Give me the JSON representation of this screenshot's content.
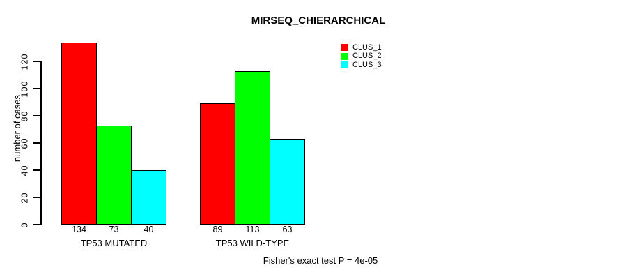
{
  "chart_data": {
    "type": "bar",
    "title": "MIRSEQ_CHIERARCHICAL",
    "xlabel": "",
    "ylabel": "number of cases",
    "categories": [
      "TP53 MUTATED",
      "TP53 WILD-TYPE"
    ],
    "series": [
      {
        "name": "CLUS_1",
        "color": "#FF0000",
        "values": [
          134,
          89
        ]
      },
      {
        "name": "CLUS_2",
        "color": "#00FF00",
        "values": [
          73,
          113
        ]
      },
      {
        "name": "CLUS_3",
        "color": "#00FFFF",
        "values": [
          40,
          63
        ]
      }
    ],
    "bar_value_labels": [
      [
        "134",
        "73",
        "40"
      ],
      [
        "89",
        "113",
        "63"
      ]
    ],
    "yticks": [
      0,
      20,
      40,
      60,
      80,
      100,
      120
    ],
    "ylim": [
      0,
      140
    ],
    "grid": false,
    "legend_position": "top-right",
    "legend_labels": [
      "CLUS_1",
      "CLUS_2",
      "CLUS_3"
    ],
    "annotation": "Fisher's exact test P = 4e-05"
  },
  "colors": {
    "foreground": "#000000",
    "background": "#FFFFFF"
  }
}
